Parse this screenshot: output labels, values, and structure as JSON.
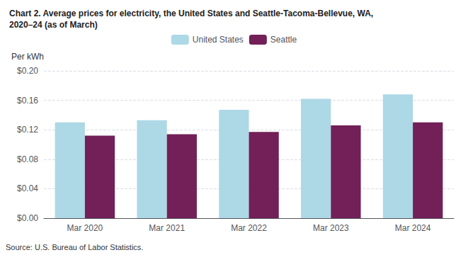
{
  "chart_data": {
    "type": "bar",
    "title": "Chart 2. Average prices for electricity, the United States and Seattle-Tacoma-Bellevue, WA,\n2020–24 (as of March)",
    "ylabel": "Per kWh",
    "annotations": [
      "Source: U.S. Bureau of Labor Statistics."
    ],
    "categories": [
      "Mar 2020",
      "Mar 2021",
      "Mar 2022",
      "Mar 2023",
      "Mar 2024"
    ],
    "series": [
      {
        "name": "United States",
        "color": "#add8e6",
        "values": [
          0.13,
          0.133,
          0.147,
          0.162,
          0.168
        ]
      },
      {
        "name": "Seattle",
        "color": "#722057",
        "values": [
          0.112,
          0.114,
          0.117,
          0.126,
          0.13
        ]
      }
    ],
    "ylim": [
      0,
      0.2
    ],
    "yticks": [
      {
        "value": 0.0,
        "label": "$0.00"
      },
      {
        "value": 0.04,
        "label": "$0.04"
      },
      {
        "value": 0.08,
        "label": "$0.08"
      },
      {
        "value": 0.12,
        "label": "$0.12"
      },
      {
        "value": 0.16,
        "label": "$0.16"
      },
      {
        "value": 0.2,
        "label": "$0.20"
      }
    ],
    "grid": true,
    "legend": "top"
  }
}
